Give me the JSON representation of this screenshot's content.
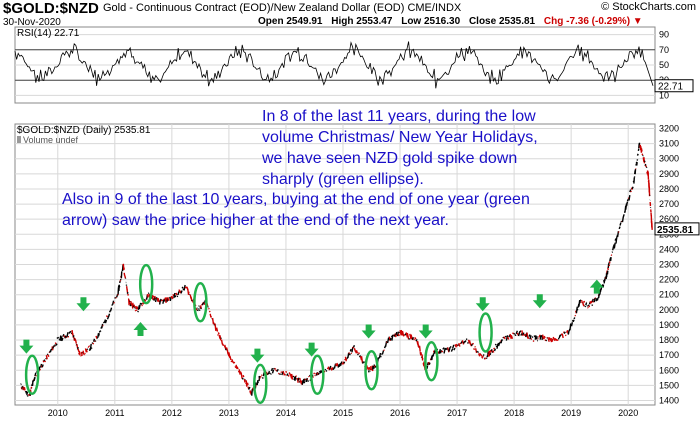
{
  "header": {
    "title": "$GOLD:$NZD",
    "subtitle": "Gold - Continuous Contract (EOD)/New Zealand Dollar (EOD) CME/INDX",
    "watermark": "© StockCharts.com",
    "date": "30-Nov-2020",
    "ohlc": [
      {
        "label": "Open",
        "value": "2549.91"
      },
      {
        "label": "High",
        "value": "2553.47"
      },
      {
        "label": "Low",
        "value": "2516.30"
      },
      {
        "label": "Close",
        "value": "2535.81"
      }
    ],
    "chg": "Chg -7.36 (-0.29%)"
  },
  "annotations": {
    "text1": "In 8 of the last 11 years, during the low\nvolume Christmas/ New Year Holidays,\nwe have seen NZD gold spike down\nsharply (green ellipse).",
    "text2": "Also in 9 of the last 10 years, buying at the end of one year (green\narrow) saw the price higher at the end of the next year."
  },
  "colors": {
    "price_up": "#000000",
    "price_down": "#cc0000",
    "annotation": "#1a10c8",
    "marker": "#22b14c",
    "grid": "#d8d8d8"
  },
  "chart_data": [
    {
      "type": "line",
      "title": "RSI(14) 22.71",
      "series": [
        {
          "name": "RSI(14)",
          "last": 22.71
        }
      ],
      "yticks": [
        10,
        30,
        50,
        70,
        90
      ],
      "ylim": [
        0,
        100
      ],
      "reference_lines": [
        30,
        70
      ],
      "last_label": "22.71"
    },
    {
      "type": "line",
      "title": "$GOLD:$NZD (Daily) 2535.81",
      "legend": [
        "Volume undef"
      ],
      "x": [
        2009.85,
        2010.0,
        2010.1,
        2010.3,
        2010.5,
        2010.75,
        2010.9,
        2011.1,
        2011.3,
        2011.55,
        2011.65,
        2011.75,
        2011.9,
        2012.1,
        2012.3,
        2012.5,
        2012.75,
        2012.95,
        2013.1,
        2013.3,
        2013.5,
        2013.75,
        2013.9,
        2014.05,
        2014.3,
        2014.6,
        2014.8,
        2014.97,
        2015.2,
        2015.5,
        2015.7,
        2015.95,
        2016.05,
        2016.3,
        2016.5,
        2016.8,
        2016.95,
        2017.1,
        2017.4,
        2017.7,
        2017.95,
        2018.1,
        2018.3,
        2018.6,
        2018.85,
        2019.0,
        2019.2,
        2019.45,
        2019.65,
        2019.8,
        2019.95,
        2020.1,
        2020.2,
        2020.4,
        2020.6,
        2020.7,
        2020.85,
        2020.92
      ],
      "y": [
        1500,
        1430,
        1560,
        1680,
        1800,
        1850,
        1700,
        1760,
        1900,
        2100,
        2300,
        2050,
        2000,
        2100,
        2050,
        2080,
        2150,
        2000,
        2050,
        1850,
        1700,
        1550,
        1450,
        1560,
        1600,
        1560,
        1520,
        1560,
        1600,
        1650,
        1750,
        1600,
        1620,
        1800,
        1850,
        1800,
        1600,
        1720,
        1740,
        1800,
        1680,
        1720,
        1800,
        1850,
        1810,
        1820,
        1800,
        1850,
        2050,
        2030,
        2070,
        2200,
        2350,
        2600,
        2850,
        3100,
        2900,
        2535.81
      ],
      "yticks": [
        1400,
        1500,
        1600,
        1700,
        1800,
        1900,
        2000,
        2100,
        2200,
        2300,
        2400,
        2500,
        2600,
        2700,
        2800,
        2900,
        3000,
        3100,
        3200
      ],
      "ylim": [
        1370,
        3230
      ],
      "xticks": [
        "2010",
        "2011",
        "2012",
        "2013",
        "2014",
        "2015",
        "2016",
        "2017",
        "2018",
        "2019",
        "2020"
      ],
      "last_label": "2535.81",
      "ellipses": [
        {
          "x": 2010.05,
          "y": 1570
        },
        {
          "x": 2012.05,
          "y": 2170
        },
        {
          "x": 2013.0,
          "y": 2050
        },
        {
          "x": 2014.05,
          "y": 1510
        },
        {
          "x": 2015.05,
          "y": 1570
        },
        {
          "x": 2016.0,
          "y": 1600
        },
        {
          "x": 2017.05,
          "y": 1660
        },
        {
          "x": 2018.0,
          "y": 1850
        }
      ],
      "arrows_down": [
        {
          "x": 2009.95,
          "y": 1750
        },
        {
          "x": 2010.95,
          "y": 2030
        },
        {
          "x": 2014.0,
          "y": 1690
        },
        {
          "x": 2014.95,
          "y": 1730
        },
        {
          "x": 2015.95,
          "y": 1850
        },
        {
          "x": 2016.95,
          "y": 1850
        },
        {
          "x": 2017.95,
          "y": 2030
        },
        {
          "x": 2018.95,
          "y": 2050
        }
      ],
      "arrows_up": [
        {
          "x": 2011.95,
          "y": 1880
        },
        {
          "x": 2019.95,
          "y": 2160
        }
      ]
    }
  ]
}
